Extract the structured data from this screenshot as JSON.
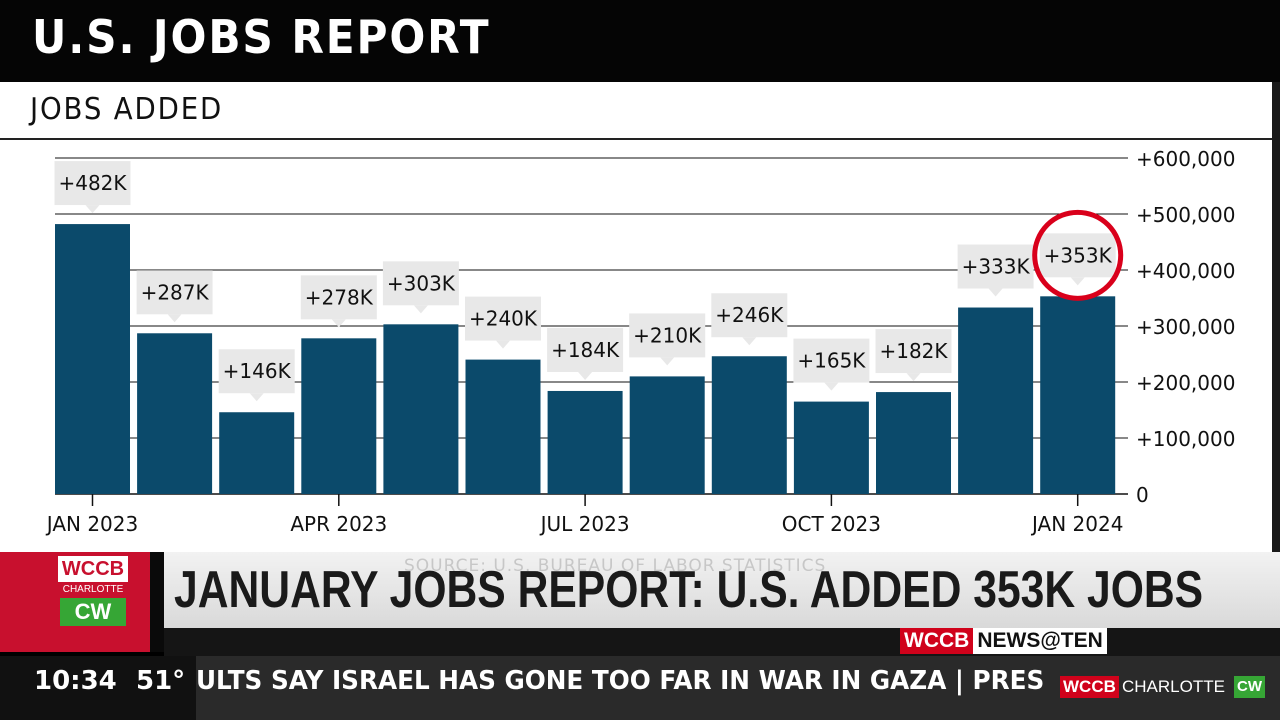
{
  "header": {
    "title": "U.S. JOBS REPORT",
    "subtitle": "JOBS ADDED"
  },
  "chart_data": {
    "type": "bar",
    "title": "JOBS ADDED",
    "categories": [
      "Jan 2023",
      "Feb 2023",
      "Mar 2023",
      "Apr 2023",
      "May 2023",
      "Jun 2023",
      "Jul 2023",
      "Aug 2023",
      "Sep 2023",
      "Oct 2023",
      "Nov 2023",
      "Dec 2023",
      "Jan 2024"
    ],
    "values": [
      482000,
      287000,
      146000,
      278000,
      303000,
      240000,
      184000,
      210000,
      246000,
      165000,
      182000,
      333000,
      353000
    ],
    "data_labels": [
      "+482K",
      "+287K",
      "+146K",
      "+278K",
      "+303K",
      "+240K",
      "+184K",
      "+210K",
      "+246K",
      "+165K",
      "+182K",
      "+333K",
      "+353K"
    ],
    "x_tick_labels": [
      {
        "index": 0,
        "label": "JAN 2023"
      },
      {
        "index": 3,
        "label": "APR 2023"
      },
      {
        "index": 6,
        "label": "JUL 2023"
      },
      {
        "index": 9,
        "label": "OCT 2023"
      },
      {
        "index": 12,
        "label": "JAN 2024"
      }
    ],
    "y_ticks": [
      0,
      100000,
      200000,
      300000,
      400000,
      500000,
      600000
    ],
    "y_tick_labels": [
      "0",
      "+100,000",
      "+200,000",
      "+300,000",
      "+400,000",
      "+500,000",
      "+600,000"
    ],
    "ylim": [
      0,
      600000
    ],
    "y_axis_side": "right",
    "grid": true,
    "highlight_index": 12,
    "source": "SOURCE: U.S. BUREAU OF LABOR STATISTICS",
    "colors": {
      "bar": "#0b4a6b",
      "label_bg": "#e8e8e8",
      "highlight": "#d9001b"
    }
  },
  "lower_third": {
    "logo": {
      "top": "WCCB",
      "middle": "CHARLOTTE",
      "bottom": "CW"
    },
    "headline": "JANUARY JOBS REPORT: U.S. ADDED 353K JOBS",
    "show_bug": {
      "part1": "WCCB",
      "part2": "NEWS@TEN"
    }
  },
  "ticker": {
    "time": "10:34",
    "temperature": "51°",
    "crawl_text": "ULTS SAY ISRAEL HAS GONE TOO FAR IN WAR IN GAZA   |   PRES",
    "end_logo": {
      "part1": "WCCB",
      "part2": "CHARLOTTE",
      "part3": "CW"
    }
  }
}
